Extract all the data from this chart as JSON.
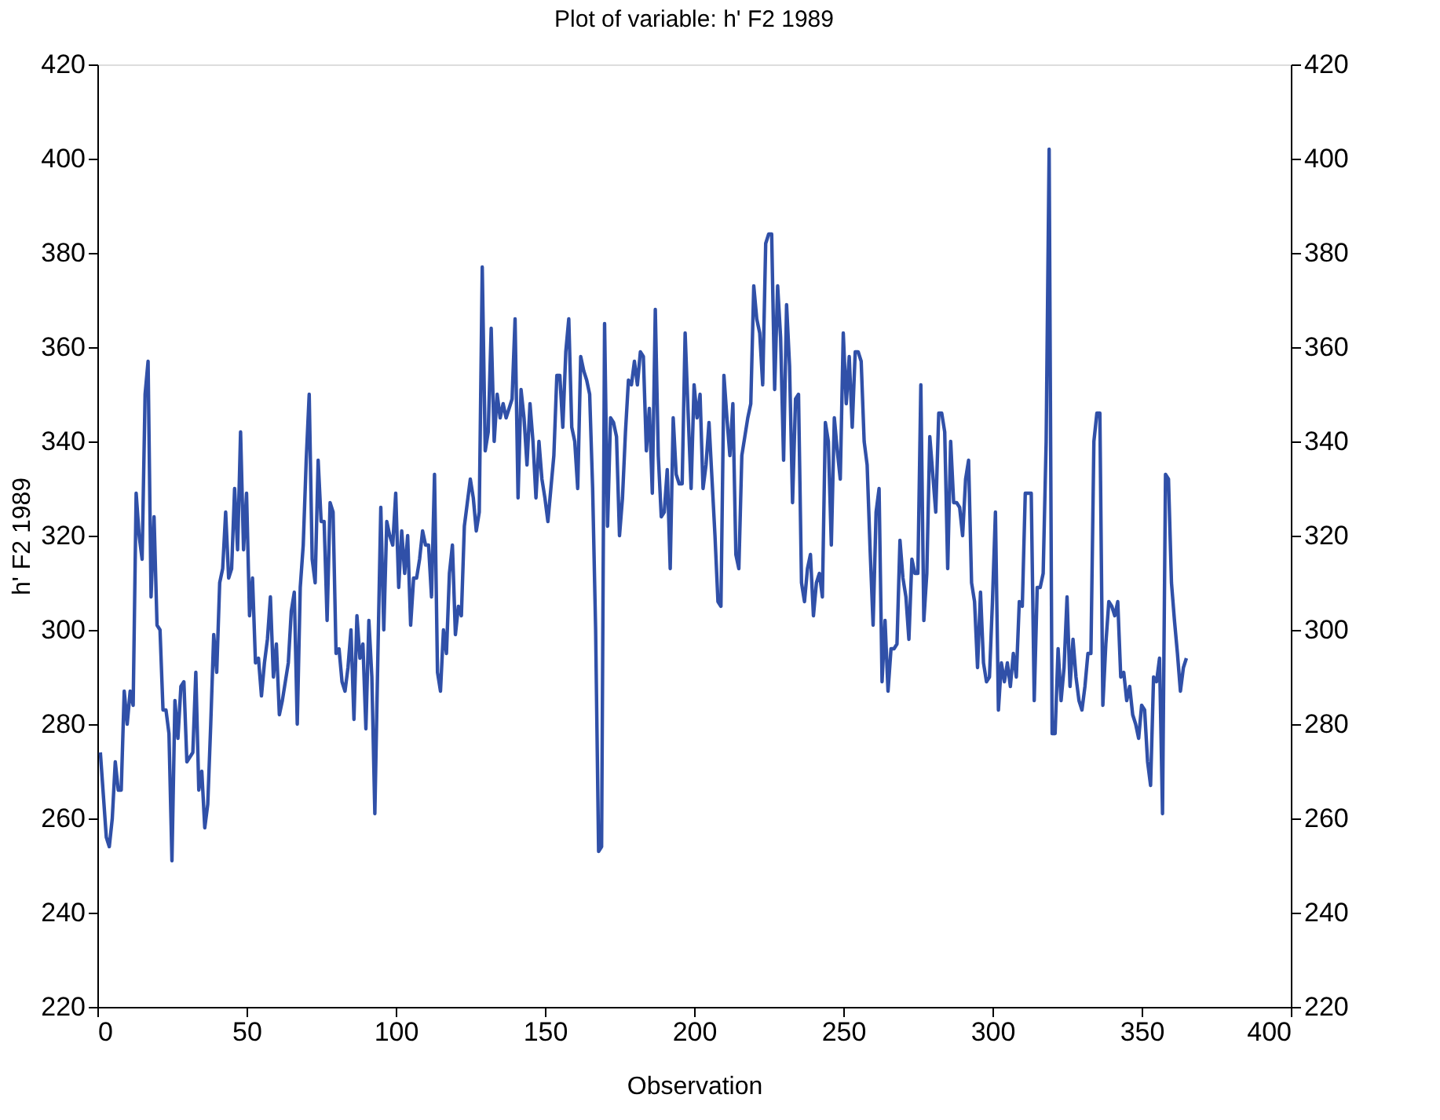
{
  "chart_data": {
    "type": "line",
    "title": "Plot of variable: h' F2 1989",
    "xlabel": "Observation",
    "ylabel": "h' F2 1989",
    "x": [
      1,
      2,
      3,
      4,
      5,
      6,
      7,
      8,
      9,
      10,
      11,
      12,
      13,
      14,
      15,
      16,
      17,
      18,
      19,
      20,
      21,
      22,
      23,
      24,
      25,
      26,
      27,
      28,
      29,
      30,
      31,
      32,
      33,
      34,
      35,
      36,
      37,
      38,
      39,
      40,
      41,
      42,
      43,
      44,
      45,
      46,
      47,
      48,
      49,
      50,
      51,
      52,
      53,
      54,
      55,
      56,
      57,
      58,
      59,
      60,
      61,
      62,
      63,
      64,
      65,
      66,
      67,
      68,
      69,
      70,
      71,
      72,
      73,
      74,
      75,
      76,
      77,
      78,
      79,
      80,
      81,
      82,
      83,
      84,
      85,
      86,
      87,
      88,
      89,
      90,
      91,
      92,
      93,
      94,
      95,
      96,
      97,
      98,
      99,
      100,
      101,
      102,
      103,
      104,
      105,
      106,
      107,
      108,
      109,
      110,
      111,
      112,
      113,
      114,
      115,
      116,
      117,
      118,
      119,
      120,
      121,
      122,
      123,
      124,
      125,
      126,
      127,
      128,
      129,
      130,
      131,
      132,
      133,
      134,
      135,
      136,
      137,
      138,
      139,
      140,
      141,
      142,
      143,
      144,
      145,
      146,
      147,
      148,
      149,
      150,
      151,
      152,
      153,
      154,
      155,
      156,
      157,
      158,
      159,
      160,
      161,
      162,
      163,
      164,
      165,
      166,
      167,
      168,
      169,
      170,
      171,
      172,
      173,
      174,
      175,
      176,
      177,
      178,
      179,
      180,
      181,
      182,
      183,
      184,
      185,
      186,
      187,
      188,
      189,
      190,
      191,
      192,
      193,
      194,
      195,
      196,
      197,
      198,
      199,
      200,
      201,
      202,
      203,
      204,
      205,
      206,
      207,
      208,
      209,
      210,
      211,
      212,
      213,
      214,
      215,
      216,
      217,
      218,
      219,
      220,
      221,
      222,
      223,
      224,
      225,
      226,
      227,
      228,
      229,
      230,
      231,
      232,
      233,
      234,
      235,
      236,
      237,
      238,
      239,
      240,
      241,
      242,
      243,
      244,
      245,
      246,
      247,
      248,
      249,
      250,
      251,
      252,
      253,
      254,
      255,
      256,
      257,
      258,
      259,
      260,
      261,
      262,
      263,
      264,
      265,
      266,
      267,
      268,
      269,
      270,
      271,
      272,
      273,
      274,
      275,
      276,
      277,
      278,
      279,
      280,
      281,
      282,
      283,
      284,
      285,
      286,
      287,
      288,
      289,
      290,
      291,
      292,
      293,
      294,
      295,
      296,
      297,
      298,
      299,
      300,
      301,
      302,
      303,
      304,
      305,
      306,
      307,
      308,
      309,
      310,
      311,
      312,
      313,
      314,
      315,
      316,
      317,
      318,
      319,
      320,
      321,
      322,
      323,
      324,
      325,
      326,
      327,
      328,
      329,
      330,
      331,
      332,
      333,
      334,
      335,
      336,
      337,
      338,
      339,
      340,
      341,
      342,
      343,
      344,
      345,
      346,
      347,
      348,
      349,
      350,
      351,
      352,
      353,
      354,
      355,
      356,
      357,
      358,
      359,
      360,
      361,
      362,
      363,
      364,
      365
    ],
    "series": [
      {
        "color": "#3050a8",
        "values": [
          274,
          265,
          256,
          254,
          260,
          272,
          266,
          266,
          287,
          280,
          287,
          284,
          329,
          320,
          315,
          350,
          357,
          307,
          324,
          301,
          300,
          283,
          283,
          278,
          251,
          285,
          277,
          288,
          289,
          272,
          273,
          274,
          291,
          266,
          270,
          258,
          263,
          280,
          299,
          291,
          310,
          313,
          325,
          311,
          313,
          330,
          317,
          342,
          317,
          329,
          303,
          311,
          293,
          294,
          286,
          293,
          298,
          307,
          290,
          297,
          282,
          285,
          289,
          293,
          304,
          308,
          280,
          309,
          318,
          336,
          350,
          315,
          310,
          336,
          323,
          323,
          302,
          327,
          325,
          295,
          296,
          289,
          287,
          292,
          300,
          281,
          303,
          294,
          297,
          279,
          302,
          290,
          261,
          294,
          326,
          300,
          323,
          320,
          318,
          329,
          309,
          321,
          312,
          320,
          301,
          311,
          311,
          315,
          321,
          318,
          318,
          307,
          333,
          291,
          287,
          300,
          295,
          312,
          318,
          299,
          305,
          303,
          322,
          327,
          332,
          328,
          321,
          325,
          377,
          338,
          342,
          364,
          340,
          350,
          345,
          348,
          345,
          347,
          349,
          366,
          328,
          351,
          345,
          335,
          348,
          340,
          328,
          340,
          332,
          328,
          323,
          330,
          337,
          354,
          354,
          343,
          359,
          366,
          343,
          340,
          330,
          358,
          355,
          353,
          350,
          330,
          300,
          253,
          254,
          365,
          322,
          345,
          344,
          341,
          320,
          328,
          342,
          353,
          352,
          357,
          352,
          359,
          358,
          338,
          347,
          329,
          368,
          337,
          324,
          325,
          334,
          313,
          345,
          333,
          331,
          331,
          363,
          346,
          330,
          352,
          345,
          350,
          330,
          335,
          344,
          332,
          320,
          306,
          305,
          354,
          345,
          337,
          348,
          316,
          313,
          337,
          341,
          345,
          348,
          373,
          366,
          363,
          352,
          382,
          384,
          384,
          351,
          373,
          362,
          336,
          369,
          356,
          327,
          349,
          350,
          310,
          306,
          313,
          316,
          303,
          310,
          312,
          307,
          344,
          340,
          318,
          345,
          338,
          332,
          363,
          348,
          358,
          343,
          359,
          359,
          357,
          340,
          335,
          317,
          301,
          325,
          330,
          289,
          302,
          287,
          296,
          296,
          297,
          319,
          311,
          307,
          298,
          315,
          312,
          312,
          352,
          302,
          312,
          341,
          333,
          325,
          346,
          346,
          342,
          313,
          340,
          327,
          327,
          326,
          320,
          332,
          336,
          310,
          306,
          292,
          308,
          293,
          289,
          290,
          306,
          325,
          283,
          293,
          289,
          293,
          288,
          295,
          290,
          306,
          305,
          329,
          329,
          329,
          285,
          309,
          309,
          312,
          340,
          402,
          278,
          278,
          296,
          285,
          292,
          307,
          288,
          298,
          290,
          285,
          283,
          288,
          295,
          295,
          340,
          346,
          346,
          284,
          297,
          306,
          305,
          303,
          306,
          290,
          291,
          285,
          288,
          282,
          280,
          277,
          284,
          283,
          272,
          267,
          290,
          289,
          294,
          261,
          333,
          332,
          310,
          302,
          295,
          287,
          292,
          294
        ]
      }
    ],
    "xlim": [
      0,
      400
    ],
    "xticks": [
      0,
      50,
      100,
      150,
      200,
      250,
      300,
      350,
      400
    ],
    "ylim": [
      220,
      420
    ],
    "yticks": [
      220,
      240,
      260,
      280,
      300,
      320,
      340,
      360,
      380,
      400,
      420
    ],
    "y2lim": [
      220,
      420
    ],
    "y2ticks": [
      220,
      240,
      260,
      280,
      300,
      320,
      340,
      360,
      380,
      400,
      420
    ],
    "grid": false,
    "marker": "none",
    "line_style": "solid"
  }
}
